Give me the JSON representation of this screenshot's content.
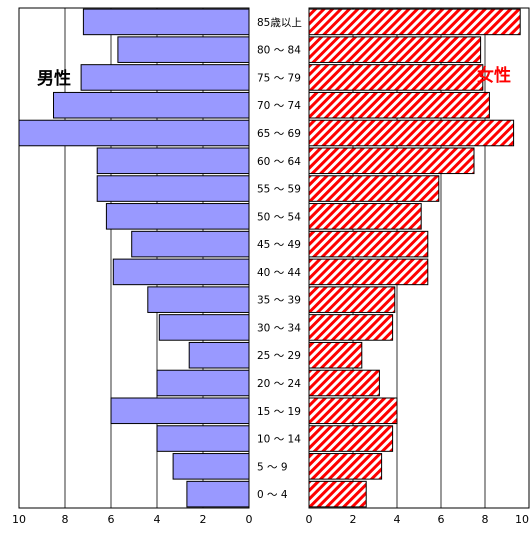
{
  "chart_data": {
    "type": "bar",
    "orientation": "horizontal",
    "categories": [
      "0 ～ 4",
      "5 ～ 9",
      "10 ～ 14",
      "15 ～ 19",
      "20 ～ 24",
      "25 ～ 29",
      "30 ～ 34",
      "35 ～ 39",
      "40 ～ 44",
      "45 ～ 49",
      "50 ～ 54",
      "55 ～ 59",
      "60 ～ 64",
      "65 ～ 69",
      "70 ～ 74",
      "75 ～ 79",
      "80 ～ 84",
      "85歳以上"
    ],
    "series": [
      {
        "name": "男性",
        "color": "#9999ff",
        "values": [
          2.7,
          3.3,
          4.0,
          6.0,
          4.0,
          2.6,
          3.9,
          4.4,
          5.9,
          5.1,
          6.2,
          6.6,
          6.6,
          10.0,
          8.5,
          7.3,
          5.7,
          7.2
        ]
      },
      {
        "name": "女性",
        "color": "#ff0000",
        "pattern": "diagonal-hatch",
        "values": [
          2.6,
          3.3,
          3.8,
          4.0,
          3.2,
          2.4,
          3.8,
          3.9,
          5.4,
          5.4,
          5.1,
          5.9,
          7.5,
          9.3,
          8.2,
          7.9,
          7.8,
          9.6
        ]
      }
    ],
    "xlim": [
      0,
      10
    ],
    "xticks": [
      "10",
      "8",
      "6",
      "4",
      "2",
      "0"
    ],
    "xticks_right": [
      "0",
      "2",
      "4",
      "6",
      "8",
      "10"
    ],
    "grid": true
  }
}
